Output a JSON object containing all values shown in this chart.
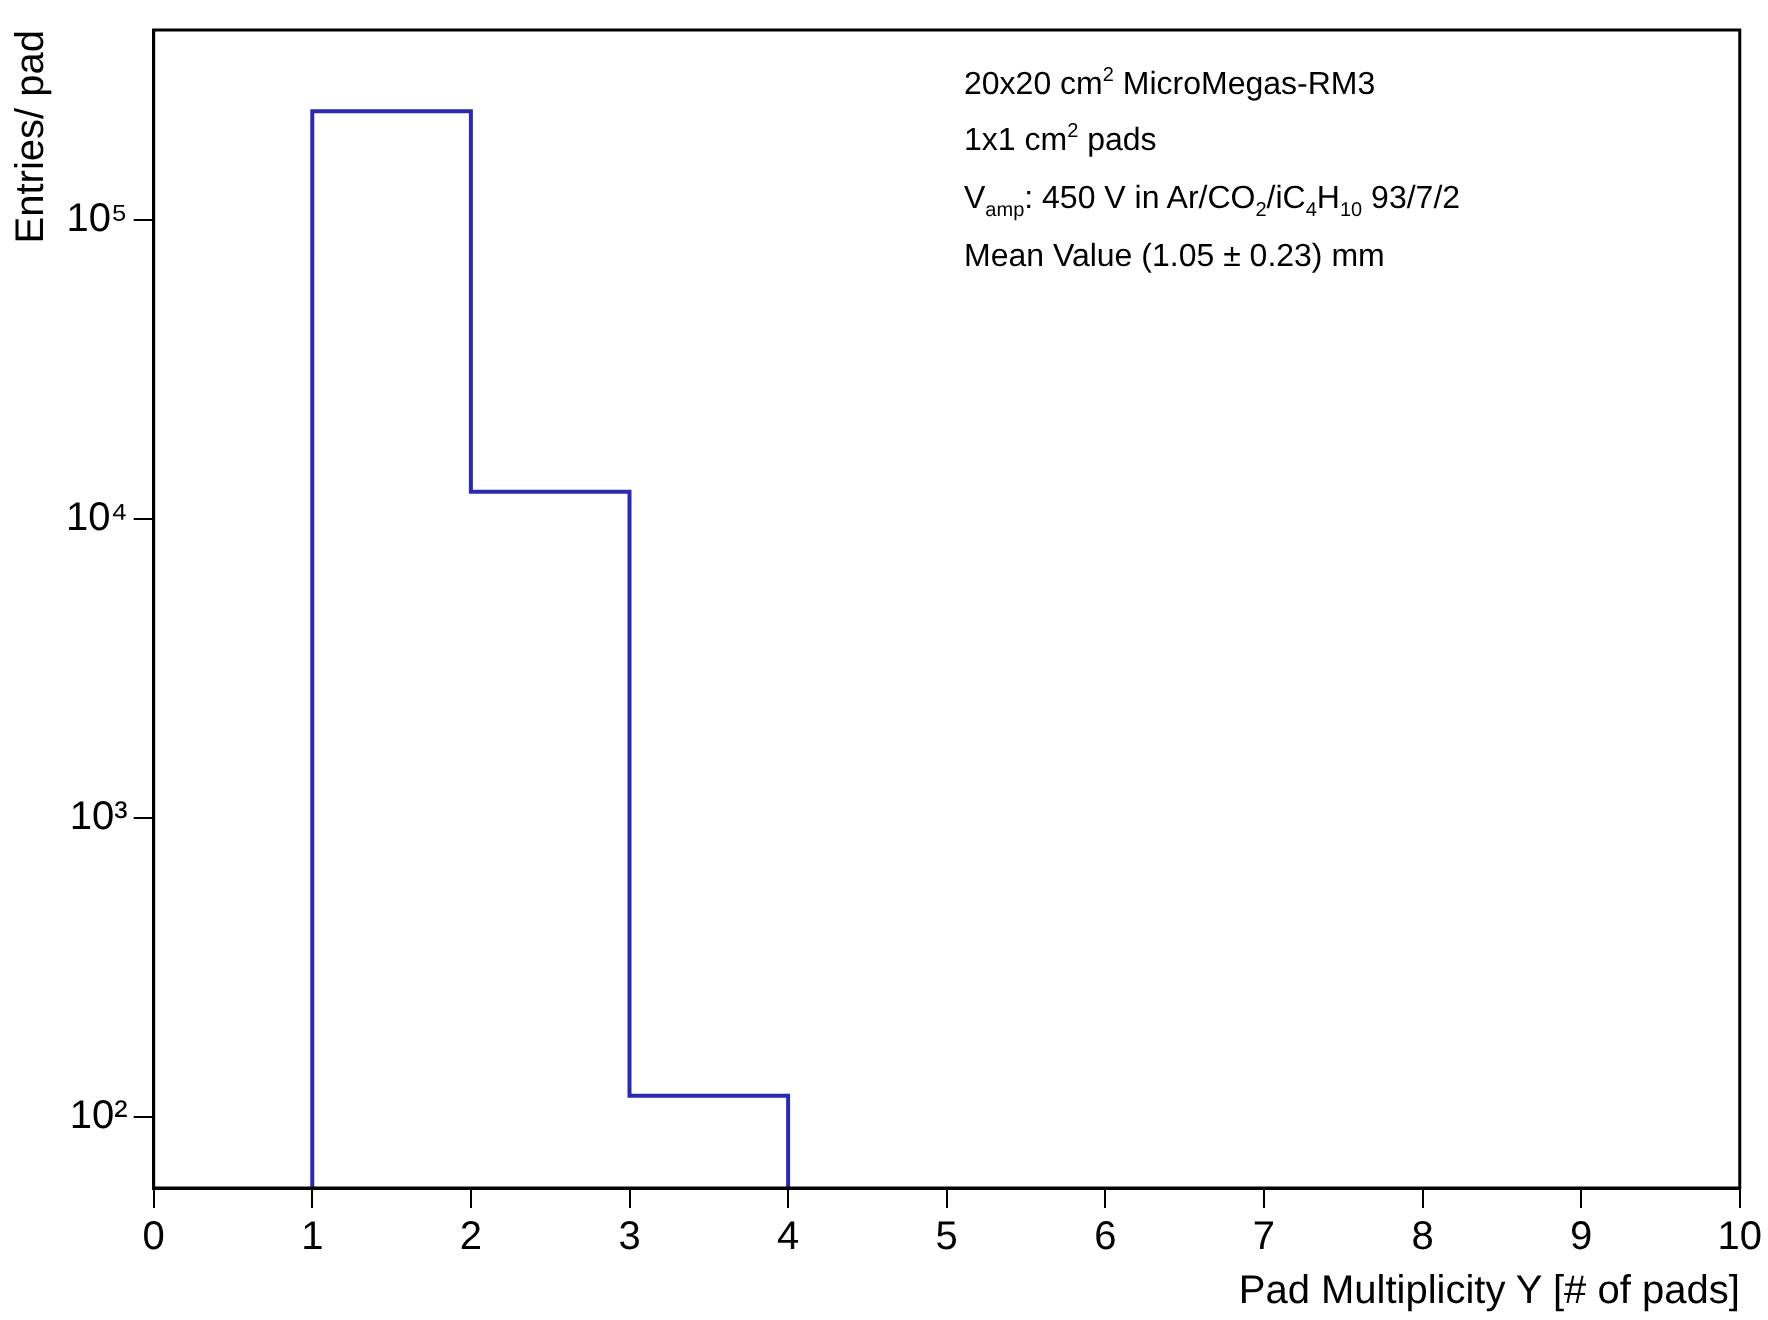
{
  "chart_data": {
    "type": "histogram",
    "xlabel": "Pad Multiplicity Y [# of pads]",
    "ylabel": "Entries/ pad",
    "annotations": [
      "20x20 cm$^{2}$ MicroMegas-RM3",
      "1x1 cm$^{2}$ pads",
      "V$_{amp}$: 450 V  in Ar/CO$_{2}$/iC$_{4}$H$_{10}$ 93/7/2",
      "Mean Value (1.05 ± 0.23) mm"
    ],
    "bins": [
      1,
      2,
      3,
      4
    ],
    "values": [
      230000,
      12300,
      118
    ],
    "color": "#2a2ab0",
    "log": "y",
    "xlim": [
      0,
      10
    ],
    "xticks": [
      0,
      1,
      2,
      3,
      4,
      5,
      6,
      7,
      8,
      9,
      10
    ],
    "ylim": [
      58,
      430000
    ],
    "yticks": [
      {
        "value": 100,
        "label": "10²"
      },
      {
        "value": 1000,
        "label": "10³"
      },
      {
        "value": 10000,
        "label": "10⁴"
      },
      {
        "value": 100000,
        "label": "10⁵"
      }
    ],
    "grid": false,
    "legend": false
  }
}
